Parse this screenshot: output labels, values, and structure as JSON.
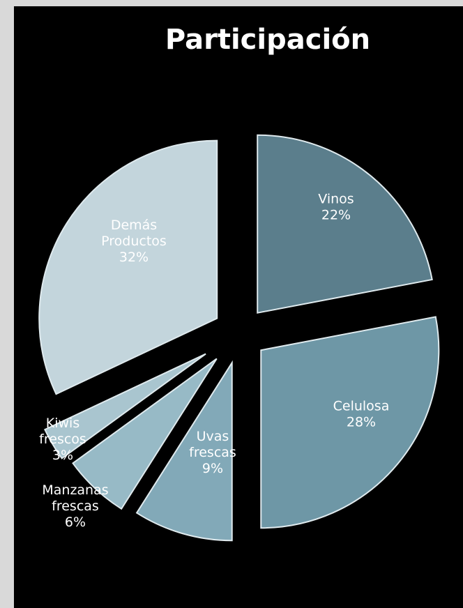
{
  "chart_data": {
    "type": "pie",
    "title": "Participación",
    "exploded": true,
    "slices": [
      {
        "name": "Vinos",
        "value": 22,
        "label_lines": [
          "Vinos",
          "22%"
        ],
        "color": "#5b7e8c",
        "label_color": "#ffffff"
      },
      {
        "name": "Celulosa",
        "value": 28,
        "label_lines": [
          "Celulosa",
          "28%"
        ],
        "color": "#6e97a6",
        "label_color": "#ffffff"
      },
      {
        "name": "Uvas frescas",
        "value": 9,
        "label_lines": [
          "Uvas",
          "frescas",
          "9%"
        ],
        "color": "#82a9b8",
        "label_color": "#ffffff"
      },
      {
        "name": "Manzanas frescas",
        "value": 6,
        "label_lines": [
          "Manzanas",
          "frescas",
          "6%"
        ],
        "color": "#97bac6",
        "label_color": "#ffffff"
      },
      {
        "name": "Kiwis frescos",
        "value": 3,
        "label_lines": [
          "Kiwis",
          "frescos",
          "3%"
        ],
        "color": "#a9c5cf",
        "label_color": "#ffffff"
      },
      {
        "name": "Demás Productos",
        "value": 32,
        "label_lines": [
          "Demás",
          "Productos",
          "32%"
        ],
        "color": "#c3d5dc",
        "label_color": "#ffffff"
      }
    ]
  }
}
